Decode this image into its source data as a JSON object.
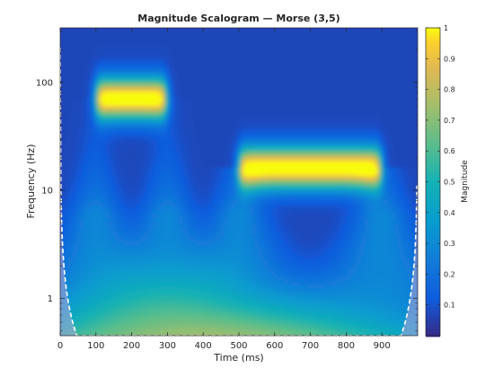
{
  "chart_data": {
    "type": "heatmap",
    "title": "Magnitude Scalogram — Morse (3,5)",
    "xlabel": "Time (ms)",
    "ylabel": "Frequency (Hz)",
    "colorbar_label": "Magnitude",
    "colormap": "parula",
    "xlim": [
      0,
      1000
    ],
    "ylim_hz": [
      0.45,
      320
    ],
    "yscale": "log",
    "x_ticks": [
      0,
      100,
      200,
      300,
      400,
      500,
      600,
      700,
      800,
      900
    ],
    "x_tick_labels": [
      "0",
      "100",
      "200",
      "300",
      "400",
      "500",
      "600",
      "700",
      "800",
      "900"
    ],
    "y_ticks": [
      1,
      10,
      100
    ],
    "y_tick_labels": [
      "1",
      "10",
      "100"
    ],
    "colorbar_ticks": [
      0.1,
      0.2,
      0.3,
      0.4,
      0.5,
      0.6,
      0.7,
      0.8,
      0.9,
      1
    ],
    "colorbar_tick_labels": [
      "0.1",
      "0.2",
      "0.3",
      "0.4",
      "0.5",
      "0.6",
      "0.7",
      "0.8",
      "0.9",
      "1"
    ],
    "colorbar_range": [
      0,
      1
    ],
    "components": [
      {
        "t_start_ms": 100,
        "t_end_ms": 300,
        "freq_hz": 70,
        "peak_magnitude": 1.0
      },
      {
        "t_start_ms": 500,
        "t_end_ms": 900,
        "freq_hz": 16,
        "peak_magnitude": 1.0
      }
    ],
    "cone_of_influence": {
      "shown": true,
      "style": "white dashed",
      "shaded": true,
      "min_freq_hz": 0.45,
      "vertex_ms": 495
    }
  }
}
